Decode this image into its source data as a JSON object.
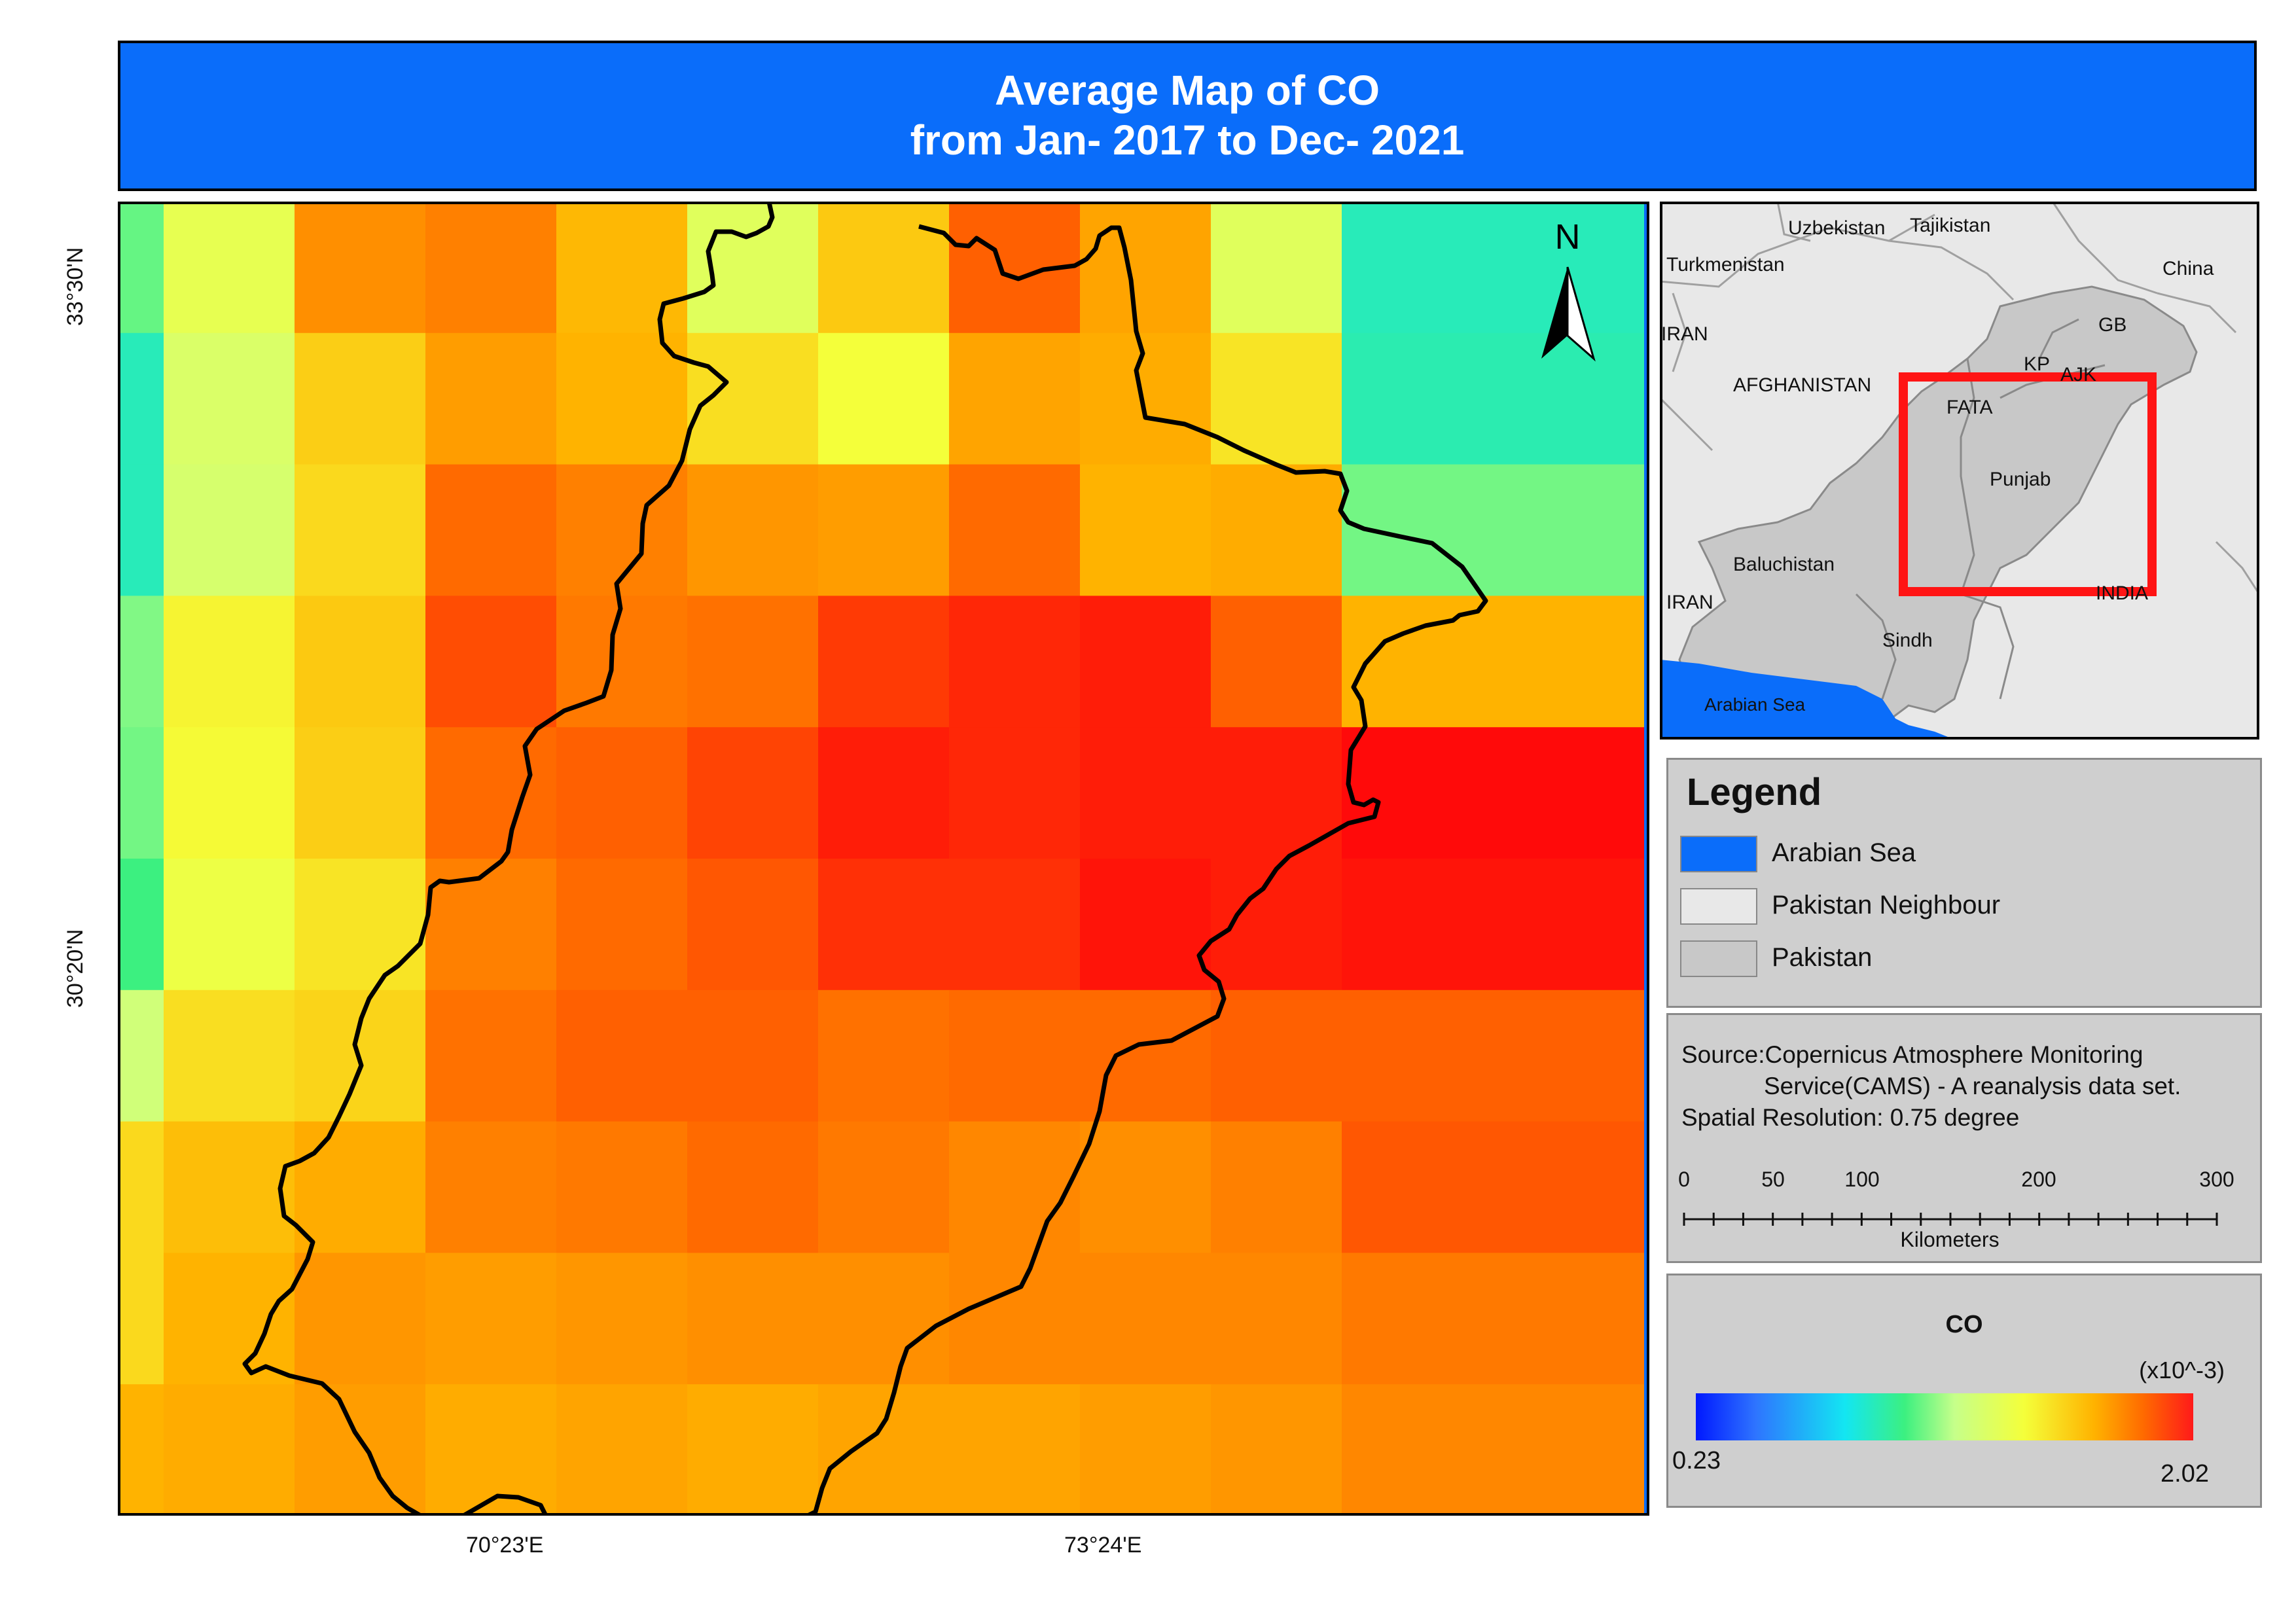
{
  "title": {
    "line1": "Average Map of CO",
    "line2": "from Jan- 2017 to Dec- 2021"
  },
  "main_map": {
    "lat_labels": [
      "33°30'N",
      "30°20'N"
    ],
    "lon_labels": [
      "70°23'E",
      "73°24'E"
    ],
    "north_label": "N",
    "raster_cells": [
      [
        0.45,
        0.62,
        0.85,
        0.87,
        0.79,
        0.6,
        0.76,
        0.91,
        0.82,
        0.6,
        0.36
      ],
      [
        0.36,
        0.58,
        0.75,
        0.83,
        0.8,
        0.72,
        0.66,
        0.82,
        0.81,
        0.71,
        0.37
      ],
      [
        0.36,
        0.57,
        0.73,
        0.9,
        0.87,
        0.84,
        0.83,
        0.9,
        0.8,
        0.81,
        0.46
      ],
      [
        0.47,
        0.68,
        0.76,
        0.93,
        0.88,
        0.89,
        0.95,
        0.97,
        0.98,
        0.91,
        0.8
      ],
      [
        0.46,
        0.67,
        0.75,
        0.9,
        0.91,
        0.94,
        0.98,
        0.97,
        0.98,
        0.98,
        1.0
      ],
      [
        0.42,
        0.64,
        0.71,
        0.87,
        0.9,
        0.92,
        0.96,
        0.96,
        0.99,
        0.98,
        0.99
      ],
      [
        0.55,
        0.72,
        0.74,
        0.89,
        0.91,
        0.91,
        0.89,
        0.9,
        0.9,
        0.91,
        0.91
      ],
      [
        0.73,
        0.78,
        0.81,
        0.87,
        0.88,
        0.9,
        0.88,
        0.86,
        0.85,
        0.87,
        0.92
      ],
      [
        0.73,
        0.8,
        0.84,
        0.83,
        0.84,
        0.85,
        0.85,
        0.86,
        0.86,
        0.86,
        0.88
      ],
      [
        0.8,
        0.81,
        0.83,
        0.81,
        0.82,
        0.81,
        0.82,
        0.82,
        0.83,
        0.84,
        0.86
      ]
    ]
  },
  "inset": {
    "labels": [
      "Uzbekistan",
      "Tajikistan",
      "Turkmenistan",
      "China",
      "IRAN",
      "GB",
      "AFGHANISTAN",
      "KP",
      "AJK",
      "FATA",
      "Punjab",
      "Baluchistan",
      "IRAN",
      "INDIA",
      "Sindh",
      "Arabian Sea"
    ]
  },
  "legend": {
    "title": "Legend",
    "items": [
      {
        "label": "Arabian Sea",
        "color": "#0a6dfa"
      },
      {
        "label": "Pakistan Neighbour",
        "color": "#e8e8e8"
      },
      {
        "label": "Pakistan",
        "color": "#c8c8c8"
      }
    ]
  },
  "source": {
    "line1": "Source:Copernicus Atmosphere Monitoring",
    "line2": "Service(CAMS) - A reanalysis data set.",
    "line3": "Spatial Resolution: 0.75 degree"
  },
  "scalebar": {
    "ticks": [
      "0",
      "50",
      "100",
      "200",
      "300"
    ],
    "unit": "Kilometers"
  },
  "colorbar": {
    "title": "CO",
    "unit": "(x10^-3)",
    "min": "0.23",
    "max": "2.02"
  }
}
